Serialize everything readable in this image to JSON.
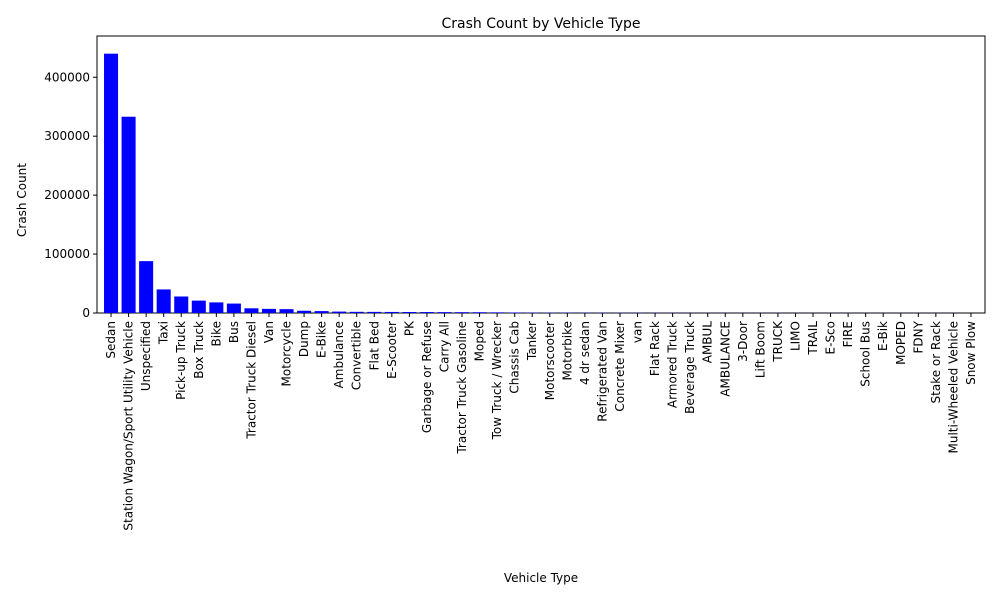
{
  "chart_data": {
    "type": "bar",
    "title": "Crash Count by Vehicle Type",
    "xlabel": "Vehicle Type",
    "ylabel": "Crash Count",
    "ylim": [
      0,
      470000
    ],
    "yticks": [
      0,
      100000,
      200000,
      300000,
      400000
    ],
    "grid": false,
    "bar_color": "#0000ff",
    "categories": [
      "Sedan",
      "Station Wagon/Sport Utility Vehicle",
      "Unspecified",
      "Taxi",
      "Pick-up Truck",
      "Box Truck",
      "Bike",
      "Bus",
      "Tractor Truck Diesel",
      "Van",
      "Motorcycle",
      "Dump",
      "E-Bike",
      "Ambulance",
      "Convertible",
      "Flat Bed",
      "E-Scooter",
      "PK",
      "Garbage or Refuse",
      "Carry All",
      "Tractor Truck Gasoline",
      "Moped",
      "Tow Truck / Wrecker",
      "Chassis Cab",
      "Tanker",
      "Motorscooter",
      "Motorbike",
      "4 dr sedan",
      "Refrigerated Van",
      "Concrete Mixer",
      "van",
      "Flat Rack",
      "Armored Truck",
      "Beverage Truck",
      "AMBUL",
      "AMBULANCE",
      "3-Door",
      "Lift Boom",
      "TRUCK",
      "LIMO",
      "TRAIL",
      "E-Sco",
      "FIRE",
      "School Bus",
      "E-Bik",
      "MOPED",
      "FDNY",
      "Stake or Rack",
      "Multi-Wheeled Vehicle",
      "Snow Plow"
    ],
    "values": [
      440000,
      333000,
      88000,
      40000,
      28000,
      21000,
      18000,
      16000,
      8000,
      7000,
      6500,
      3800,
      3200,
      2400,
      2000,
      1900,
      1800,
      1700,
      1600,
      1500,
      1400,
      1300,
      1100,
      900,
      600,
      500,
      450,
      400,
      380,
      350,
      330,
      300,
      280,
      260,
      240,
      220,
      200,
      190,
      180,
      170,
      160,
      150,
      140,
      130,
      120,
      110,
      100,
      90,
      80,
      70
    ]
  }
}
